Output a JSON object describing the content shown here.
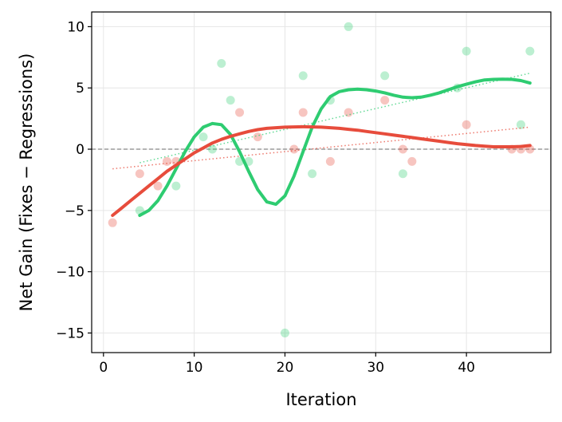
{
  "chart_data": {
    "type": "scatter",
    "xlabel": "Iteration",
    "ylabel": "Net Gain (Fixes − Regressions)",
    "xlim": [
      -1.3,
      49.3
    ],
    "ylim": [
      -16.6,
      11.2
    ],
    "xticks": [
      0,
      10,
      20,
      30,
      40
    ],
    "yticks": [
      -15,
      -10,
      -5,
      0,
      5,
      10
    ],
    "xtick_labels": [
      "0",
      "10",
      "20",
      "30",
      "40"
    ],
    "ytick_labels": [
      "−15",
      "−10",
      "−5",
      "0",
      "5",
      "10"
    ],
    "grid": true,
    "legend": "none",
    "reference_line_y": 0,
    "series": [
      {
        "color": "#2ecc71",
        "points": [
          [
            4,
            -5
          ],
          [
            8,
            -3
          ],
          [
            11,
            1
          ],
          [
            12,
            0
          ],
          [
            13,
            7
          ],
          [
            14,
            4
          ],
          [
            15,
            -1
          ],
          [
            16,
            -1
          ],
          [
            20,
            -15
          ],
          [
            22,
            6
          ],
          [
            23,
            -2
          ],
          [
            25,
            4
          ],
          [
            27,
            10
          ],
          [
            31,
            6
          ],
          [
            33,
            -2
          ],
          [
            39,
            5
          ],
          [
            40,
            8
          ],
          [
            46,
            2
          ],
          [
            47,
            8
          ]
        ],
        "trend": [
          [
            4,
            -1.1
          ],
          [
            47,
            6.2
          ]
        ],
        "smooth": [
          [
            4,
            -5.4
          ],
          [
            5,
            -5.0
          ],
          [
            6,
            -4.2
          ],
          [
            7,
            -3.0
          ],
          [
            8,
            -1.6
          ],
          [
            9,
            -0.2
          ],
          [
            10,
            1.0
          ],
          [
            11,
            1.8
          ],
          [
            12,
            2.1
          ],
          [
            13,
            2.0
          ],
          [
            14,
            1.2
          ],
          [
            15,
            -0.2
          ],
          [
            16,
            -1.8
          ],
          [
            17,
            -3.3
          ],
          [
            18,
            -4.3
          ],
          [
            19,
            -4.5
          ],
          [
            20,
            -3.8
          ],
          [
            21,
            -2.2
          ],
          [
            22,
            -0.2
          ],
          [
            23,
            1.8
          ],
          [
            24,
            3.3
          ],
          [
            25,
            4.3
          ],
          [
            26,
            4.7
          ],
          [
            27,
            4.85
          ],
          [
            28,
            4.9
          ],
          [
            29,
            4.85
          ],
          [
            30,
            4.75
          ],
          [
            31,
            4.6
          ],
          [
            32,
            4.4
          ],
          [
            33,
            4.25
          ],
          [
            34,
            4.2
          ],
          [
            35,
            4.25
          ],
          [
            36,
            4.4
          ],
          [
            37,
            4.6
          ],
          [
            38,
            4.85
          ],
          [
            39,
            5.1
          ],
          [
            40,
            5.3
          ],
          [
            41,
            5.5
          ],
          [
            42,
            5.65
          ],
          [
            43,
            5.7
          ],
          [
            44,
            5.72
          ],
          [
            45,
            5.7
          ],
          [
            46,
            5.6
          ],
          [
            47,
            5.4
          ]
        ]
      },
      {
        "color": "#e74c3c",
        "points": [
          [
            1,
            -6
          ],
          [
            4,
            -2
          ],
          [
            6,
            -3
          ],
          [
            7,
            -1
          ],
          [
            8,
            -1
          ],
          [
            15,
            3
          ],
          [
            17,
            1
          ],
          [
            21,
            0
          ],
          [
            22,
            3
          ],
          [
            25,
            -1
          ],
          [
            27,
            3
          ],
          [
            31,
            4
          ],
          [
            33,
            0
          ],
          [
            34,
            -1
          ],
          [
            40,
            2
          ],
          [
            45,
            0
          ],
          [
            46,
            0
          ],
          [
            47,
            0
          ]
        ],
        "trend": [
          [
            1,
            -1.6
          ],
          [
            47,
            1.8
          ]
        ],
        "smooth": [
          [
            1,
            -5.4
          ],
          [
            2,
            -4.8
          ],
          [
            3,
            -4.2
          ],
          [
            4,
            -3.6
          ],
          [
            5,
            -3.0
          ],
          [
            6,
            -2.4
          ],
          [
            7,
            -1.8
          ],
          [
            8,
            -1.3
          ],
          [
            9,
            -0.8
          ],
          [
            10,
            -0.3
          ],
          [
            11,
            0.1
          ],
          [
            12,
            0.5
          ],
          [
            13,
            0.8
          ],
          [
            14,
            1.05
          ],
          [
            15,
            1.25
          ],
          [
            16,
            1.45
          ],
          [
            17,
            1.6
          ],
          [
            18,
            1.7
          ],
          [
            19,
            1.75
          ],
          [
            20,
            1.8
          ],
          [
            21,
            1.82
          ],
          [
            22,
            1.83
          ],
          [
            23,
            1.82
          ],
          [
            24,
            1.8
          ],
          [
            25,
            1.75
          ],
          [
            26,
            1.7
          ],
          [
            27,
            1.62
          ],
          [
            28,
            1.55
          ],
          [
            29,
            1.45
          ],
          [
            30,
            1.35
          ],
          [
            31,
            1.25
          ],
          [
            32,
            1.15
          ],
          [
            33,
            1.05
          ],
          [
            34,
            0.95
          ],
          [
            35,
            0.85
          ],
          [
            36,
            0.75
          ],
          [
            37,
            0.65
          ],
          [
            38,
            0.55
          ],
          [
            39,
            0.45
          ],
          [
            40,
            0.38
          ],
          [
            41,
            0.3
          ],
          [
            42,
            0.25
          ],
          [
            43,
            0.2
          ],
          [
            44,
            0.2
          ],
          [
            45,
            0.2
          ],
          [
            46,
            0.22
          ],
          [
            47,
            0.3
          ]
        ]
      }
    ]
  }
}
